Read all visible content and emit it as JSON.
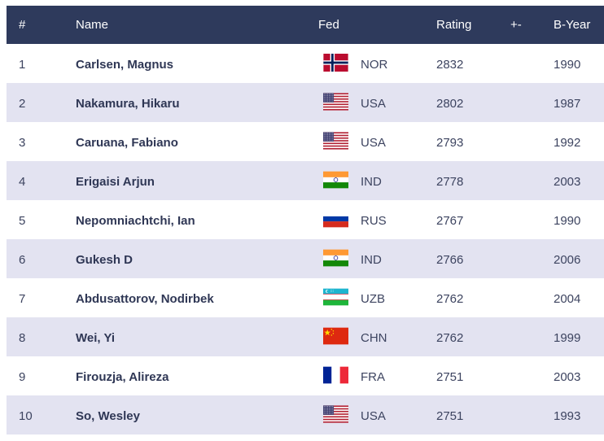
{
  "headers": {
    "rank": "#",
    "name": "Name",
    "fed": "Fed",
    "rating": "Rating",
    "change": "+-",
    "byear": "B-Year"
  },
  "rows": [
    {
      "rank": "1",
      "name": "Carlsen, Magnus",
      "flag": "norway-flag",
      "fed": "NOR",
      "rating": "2832",
      "change": "",
      "byear": "1990"
    },
    {
      "rank": "2",
      "name": "Nakamura, Hikaru",
      "flag": "usa-flag",
      "fed": "USA",
      "rating": "2802",
      "change": "",
      "byear": "1987"
    },
    {
      "rank": "3",
      "name": "Caruana, Fabiano",
      "flag": "usa-flag",
      "fed": "USA",
      "rating": "2793",
      "change": "",
      "byear": "1992"
    },
    {
      "rank": "4",
      "name": "Erigaisi Arjun",
      "flag": "india-flag",
      "fed": "IND",
      "rating": "2778",
      "change": "",
      "byear": "2003"
    },
    {
      "rank": "5",
      "name": "Nepomniachtchi, Ian",
      "flag": "russia-flag",
      "fed": "RUS",
      "rating": "2767",
      "change": "",
      "byear": "1990"
    },
    {
      "rank": "6",
      "name": "Gukesh D",
      "flag": "india-flag",
      "fed": "IND",
      "rating": "2766",
      "change": "",
      "byear": "2006"
    },
    {
      "rank": "7",
      "name": "Abdusattorov, Nodirbek",
      "flag": "uzbekistan-flag",
      "fed": "UZB",
      "rating": "2762",
      "change": "",
      "byear": "2004"
    },
    {
      "rank": "8",
      "name": "Wei, Yi",
      "flag": "china-flag",
      "fed": "CHN",
      "rating": "2762",
      "change": "",
      "byear": "1999"
    },
    {
      "rank": "9",
      "name": "Firouzja, Alireza",
      "flag": "france-flag",
      "fed": "FRA",
      "rating": "2751",
      "change": "",
      "byear": "2003"
    },
    {
      "rank": "10",
      "name": "So, Wesley",
      "flag": "usa-flag",
      "fed": "USA",
      "rating": "2751",
      "change": "",
      "byear": "1993"
    }
  ],
  "colors": {
    "header_bg": "#2e3a5c",
    "stripe_bg": "#e3e3f1",
    "text": "#3d4460"
  }
}
